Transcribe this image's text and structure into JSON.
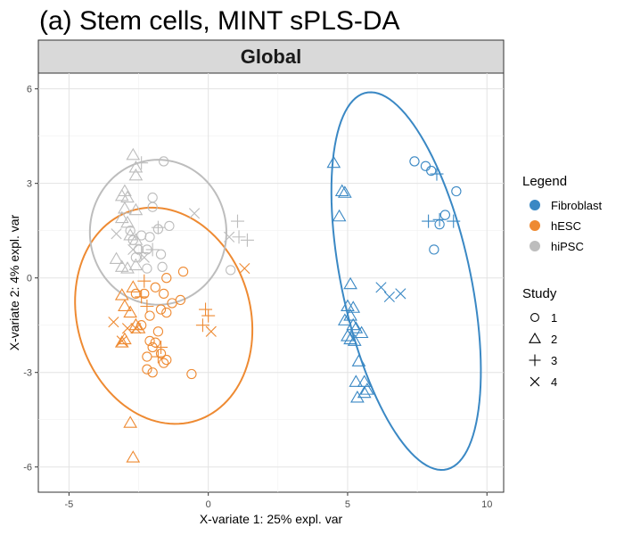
{
  "chart_data": {
    "type": "scatter",
    "title": "(a) Stem cells, MINT sPLS-DA",
    "facet": "Global",
    "xlabel": "X-variate 1: 25% expl. var",
    "ylabel": "X-variate 2: 4% expl. var",
    "xlim": [
      -6.1,
      10.6
    ],
    "ylim": [
      -6.8,
      6.5
    ],
    "xticks": [
      -5,
      0,
      5,
      10
    ],
    "yticks": [
      -6,
      -3,
      0,
      3,
      6
    ],
    "grid": true,
    "legend_position": "right",
    "legends": [
      {
        "title": "Legend",
        "type": "color",
        "entries": [
          "Fibroblast",
          "hESC",
          "hiPSC"
        ]
      },
      {
        "title": "Study",
        "type": "shape",
        "entries": [
          "1",
          "2",
          "3",
          "4"
        ]
      }
    ],
    "colors": {
      "Fibroblast": "#3a88c4",
      "hESC": "#ee8a32",
      "hiPSC": "#bdbdbd"
    },
    "ellipses": [
      {
        "group": "Fibroblast",
        "center": [
          7.1,
          -0.1
        ],
        "semi_axes": [
          2.3,
          6.15
        ],
        "angle_deg": 14
      },
      {
        "group": "hESC",
        "center": [
          -1.6,
          -1.2
        ],
        "semi_axes": [
          3.05,
          3.55
        ],
        "angle_deg": 30
      },
      {
        "group": "hiPSC",
        "center": [
          -1.8,
          1.45
        ],
        "semi_axes": [
          2.45,
          2.3
        ],
        "angle_deg": 0
      }
    ],
    "series": [
      {
        "name": "Fibroblast",
        "shape": "1",
        "points": [
          [
            7.4,
            3.7
          ],
          [
            7.8,
            3.55
          ],
          [
            8.0,
            3.4
          ],
          [
            8.9,
            2.75
          ],
          [
            8.5,
            2.0
          ],
          [
            8.3,
            1.7
          ],
          [
            8.1,
            0.9
          ]
        ]
      },
      {
        "name": "Fibroblast",
        "shape": "2",
        "points": [
          [
            4.5,
            3.65
          ],
          [
            4.8,
            2.75
          ],
          [
            4.9,
            2.7
          ],
          [
            4.7,
            1.95
          ],
          [
            5.1,
            -0.2
          ],
          [
            5.0,
            -0.9
          ],
          [
            5.2,
            -0.95
          ],
          [
            5.1,
            -1.2
          ],
          [
            4.9,
            -1.35
          ],
          [
            5.2,
            -1.5
          ],
          [
            5.3,
            -1.6
          ],
          [
            5.0,
            -1.85
          ],
          [
            5.5,
            -1.75
          ],
          [
            5.1,
            -1.95
          ],
          [
            5.25,
            -2.0
          ],
          [
            5.4,
            -2.65
          ],
          [
            5.3,
            -3.3
          ],
          [
            5.6,
            -3.3
          ],
          [
            5.7,
            -3.55
          ],
          [
            5.6,
            -3.65
          ],
          [
            5.35,
            -3.8
          ]
        ]
      },
      {
        "name": "Fibroblast",
        "shape": "3",
        "points": [
          [
            8.2,
            3.3
          ],
          [
            7.9,
            1.8
          ],
          [
            8.3,
            1.85
          ],
          [
            8.8,
            1.8
          ]
        ]
      },
      {
        "name": "Fibroblast",
        "shape": "4",
        "points": [
          [
            6.2,
            -0.3
          ],
          [
            6.5,
            -0.6
          ],
          [
            6.9,
            -0.5
          ]
        ]
      },
      {
        "name": "hESC",
        "shape": "1",
        "points": [
          [
            -0.9,
            0.2
          ],
          [
            -1.5,
            0.0
          ],
          [
            -1.9,
            -0.3
          ],
          [
            -2.3,
            -0.5
          ],
          [
            -1.6,
            -0.5
          ],
          [
            -1.3,
            -0.8
          ],
          [
            -1.7,
            -1.0
          ],
          [
            -2.1,
            -1.2
          ],
          [
            -1.5,
            -1.1
          ],
          [
            -2.4,
            -1.5
          ],
          [
            -1.8,
            -1.7
          ],
          [
            -2.1,
            -2.0
          ],
          [
            -1.9,
            -2.05
          ],
          [
            -2.0,
            -2.2
          ],
          [
            -1.7,
            -2.4
          ],
          [
            -2.2,
            -2.5
          ],
          [
            -1.5,
            -2.6
          ],
          [
            -1.6,
            -2.7
          ],
          [
            -2.2,
            -2.9
          ],
          [
            -2.0,
            -3.0
          ],
          [
            -0.6,
            -3.05
          ],
          [
            -1.0,
            -0.7
          ],
          [
            -2.6,
            -0.5
          ]
        ]
      },
      {
        "name": "hESC",
        "shape": "2",
        "points": [
          [
            -2.7,
            -0.3
          ],
          [
            -3.1,
            -0.55
          ],
          [
            -3.0,
            -0.9
          ],
          [
            -2.8,
            -1.1
          ],
          [
            -2.6,
            -1.5
          ],
          [
            -2.5,
            -1.6
          ],
          [
            -3.0,
            -1.95
          ],
          [
            -3.1,
            -2.05
          ],
          [
            -2.8,
            -4.6
          ],
          [
            -2.7,
            -5.7
          ]
        ]
      },
      {
        "name": "hESC",
        "shape": "3",
        "points": [
          [
            -2.3,
            -0.1
          ],
          [
            -2.4,
            -0.6
          ],
          [
            -2.2,
            -0.9
          ],
          [
            -0.1,
            -1.0
          ],
          [
            0.0,
            -1.2
          ],
          [
            -0.2,
            -1.5
          ],
          [
            -1.7,
            -2.2
          ],
          [
            -1.8,
            -2.5
          ]
        ]
      },
      {
        "name": "hESC",
        "shape": "4",
        "points": [
          [
            -3.4,
            -1.4
          ],
          [
            -3.1,
            -2.0
          ],
          [
            -2.9,
            -1.6
          ],
          [
            -2.6,
            -1.6
          ],
          [
            0.1,
            -1.7
          ],
          [
            1.3,
            0.3
          ]
        ]
      },
      {
        "name": "hiPSC",
        "shape": "1",
        "points": [
          [
            -1.6,
            3.7
          ],
          [
            -2.0,
            2.55
          ],
          [
            -2.0,
            2.25
          ],
          [
            -1.4,
            1.65
          ],
          [
            -1.8,
            1.55
          ],
          [
            -2.1,
            1.3
          ],
          [
            -2.2,
            0.9
          ],
          [
            -1.7,
            0.75
          ],
          [
            -1.65,
            0.35
          ],
          [
            -2.2,
            0.3
          ],
          [
            -2.6,
            0.65
          ],
          [
            -2.5,
            0.9
          ],
          [
            -2.7,
            1.2
          ],
          [
            -2.4,
            1.35
          ],
          [
            -2.8,
            1.5
          ],
          [
            0.8,
            0.25
          ]
        ]
      },
      {
        "name": "hiPSC",
        "shape": "2",
        "points": [
          [
            -2.7,
            3.9
          ],
          [
            -2.6,
            3.5
          ],
          [
            -2.6,
            3.25
          ],
          [
            -3.0,
            2.75
          ],
          [
            -3.1,
            2.6
          ],
          [
            -2.9,
            2.55
          ],
          [
            -3.0,
            2.2
          ],
          [
            -2.6,
            2.15
          ],
          [
            -3.1,
            1.9
          ],
          [
            -2.9,
            1.75
          ],
          [
            -2.8,
            1.35
          ],
          [
            -2.6,
            1.2
          ],
          [
            -3.3,
            0.6
          ],
          [
            -3.1,
            0.35
          ],
          [
            -2.9,
            0.3
          ],
          [
            -2.6,
            0.4
          ]
        ]
      },
      {
        "name": "hiPSC",
        "shape": "3",
        "points": [
          [
            -2.4,
            3.65
          ],
          [
            -1.8,
            1.6
          ],
          [
            -2.0,
            0.9
          ],
          [
            -2.4,
            0.8
          ],
          [
            1.05,
            1.8
          ],
          [
            1.4,
            1.2
          ],
          [
            1.1,
            1.3
          ]
        ]
      },
      {
        "name": "hiPSC",
        "shape": "4",
        "points": [
          [
            -3.3,
            1.4
          ],
          [
            -2.7,
            0.9
          ],
          [
            -2.3,
            0.65
          ],
          [
            -0.5,
            2.05
          ],
          [
            0.75,
            1.3
          ]
        ]
      }
    ]
  }
}
